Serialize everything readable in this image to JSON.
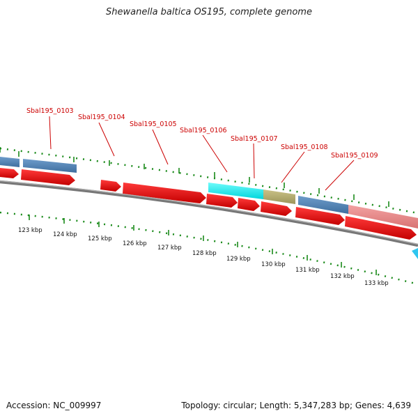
{
  "title": "Shewanella baltica OS195, complete genome",
  "footer": {
    "accession_label": "Accession: NC_009997",
    "summary_label": "Topology: circular; Length: 5,347,283 bp; Genes: 4,639"
  },
  "map": {
    "gene_labels": [
      "Sbal195_0103",
      "Sbal195_0104",
      "Sbal195_0105",
      "Sbal195_0106",
      "Sbal195_0107",
      "Sbal195_0108",
      "Sbal195_0109"
    ],
    "kbp_labels": [
      "123 kbp",
      "124 kbp",
      "125 kbp",
      "126 kbp",
      "127 kbp",
      "128 kbp",
      "129 kbp",
      "130 kbp",
      "131 kbp",
      "132 kbp",
      "133 kbp"
    ]
  },
  "colors": {
    "gene_label": "#cc0000",
    "cds_forward": "#ee1111",
    "blue_gene": "#4f82b4",
    "cyan_gene": "#14f0f0",
    "olive_gene": "#b4ad6e",
    "pink_gene": "#e88888",
    "tick_green": "#1a8a1a",
    "backbone": "#777777",
    "marker_cyan": "#2fc6ef"
  }
}
